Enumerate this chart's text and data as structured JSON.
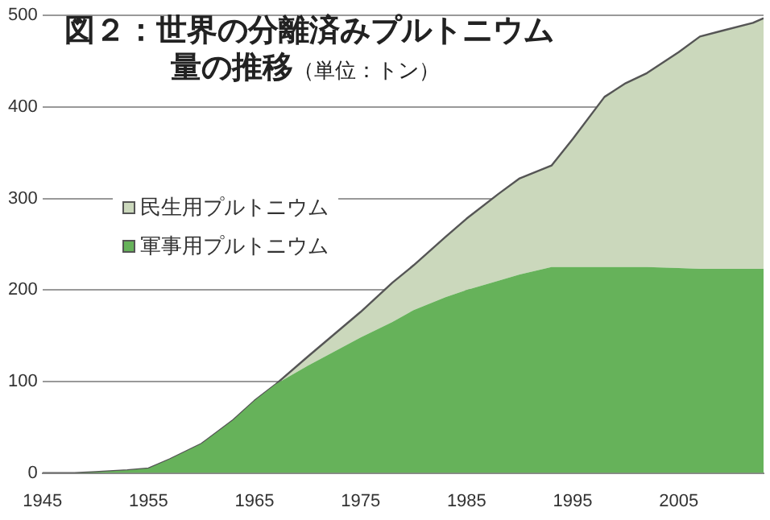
{
  "chart_data": {
    "type": "area",
    "title": "図２：世界の分離済みプルトニウム量の推移",
    "subtitle": "（単位：トン）",
    "stacked": true,
    "x": [
      1945,
      1948,
      1950,
      1953,
      1955,
      1957,
      1960,
      1963,
      1965,
      1967,
      1970,
      1975,
      1978,
      1980,
      1983,
      1985,
      1988,
      1990,
      1993,
      1995,
      1998,
      2000,
      2002,
      2005,
      2007,
      2009,
      2012,
      2013
    ],
    "series": [
      {
        "name": "軍事用プルトニウム",
        "color": "#66b25a",
        "values": [
          0,
          0,
          1,
          3,
          5,
          15,
          32,
          58,
          79,
          97,
          117,
          148,
          165,
          178,
          192,
          200,
          210,
          217,
          225,
          225,
          225,
          225,
          225,
          224,
          223,
          223,
          223,
          223
        ]
      },
      {
        "name": "民生用プルトニウム",
        "color": "#cbd8bc",
        "values": [
          0,
          0,
          0,
          0,
          0,
          0,
          0,
          0,
          0,
          0,
          10,
          28,
          43,
          49,
          66,
          78,
          95,
          105,
          111,
          140,
          186,
          201,
          212,
          236,
          254,
          260,
          269,
          274
        ]
      }
    ],
    "xlim": [
      1945,
      2013
    ],
    "xticks": [
      1945,
      1955,
      1965,
      1975,
      1985,
      1995,
      2005
    ],
    "ylim": [
      0,
      500
    ],
    "yticks": [
      0,
      100,
      200,
      300,
      400,
      500
    ],
    "grid": "y",
    "legend": "left"
  }
}
